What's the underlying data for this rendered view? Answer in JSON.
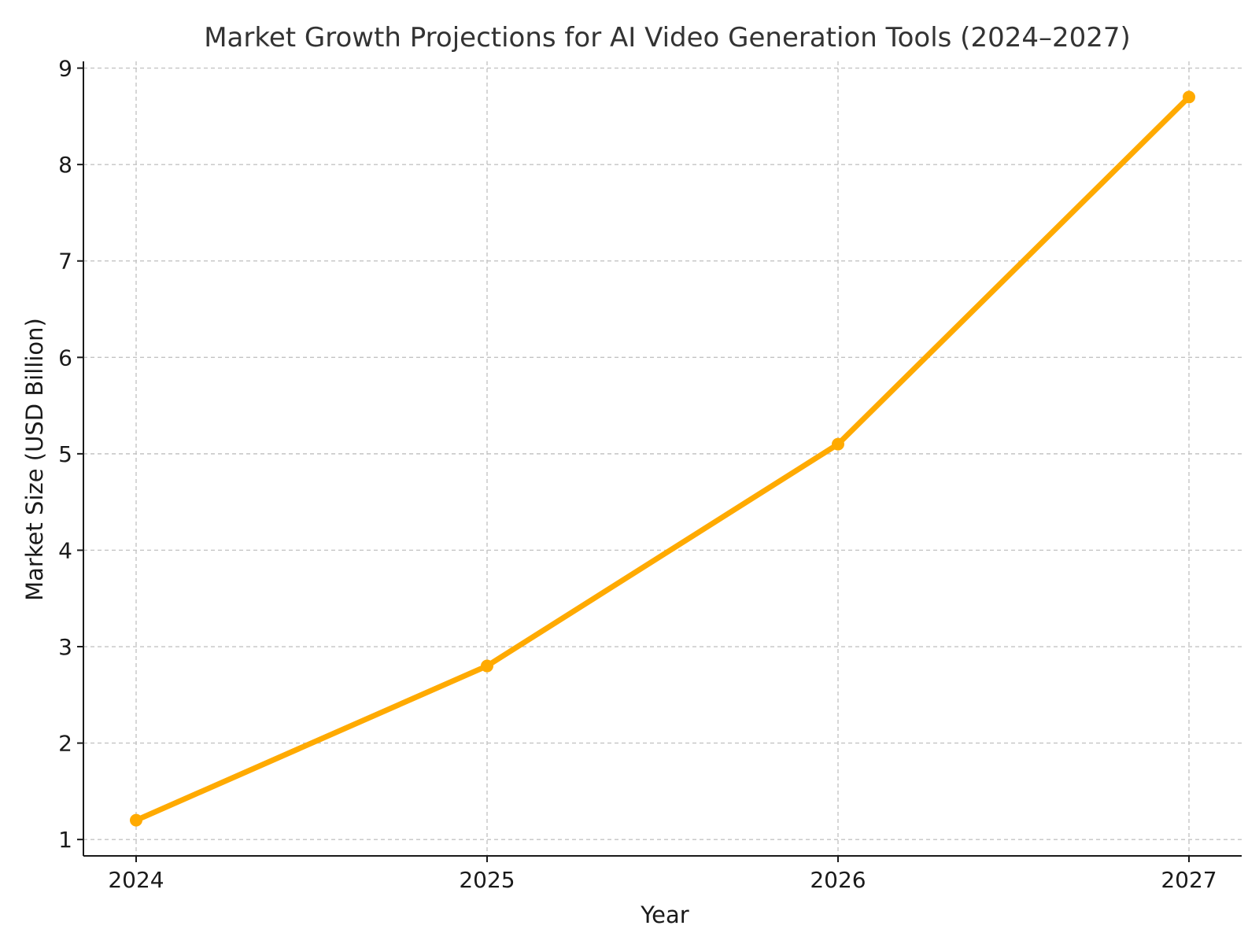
{
  "chart_data": {
    "type": "line",
    "title": "Market Growth Projections for AI Video Generation Tools (2024–2027)",
    "xlabel": "Year",
    "ylabel": "Market Size (USD Billion)",
    "categories": [
      "2024",
      "2025",
      "2026",
      "2027"
    ],
    "series": [
      {
        "values": [
          1.2,
          2.8,
          5.1,
          8.7
        ],
        "color": "#FFAA00",
        "marker": "circle"
      }
    ],
    "ylim": [
      0.83,
      9.07
    ],
    "yticks": [
      1,
      2,
      3,
      4,
      5,
      6,
      7,
      8,
      9
    ],
    "grid": true,
    "grid_style": "dashed",
    "legend": "none"
  }
}
